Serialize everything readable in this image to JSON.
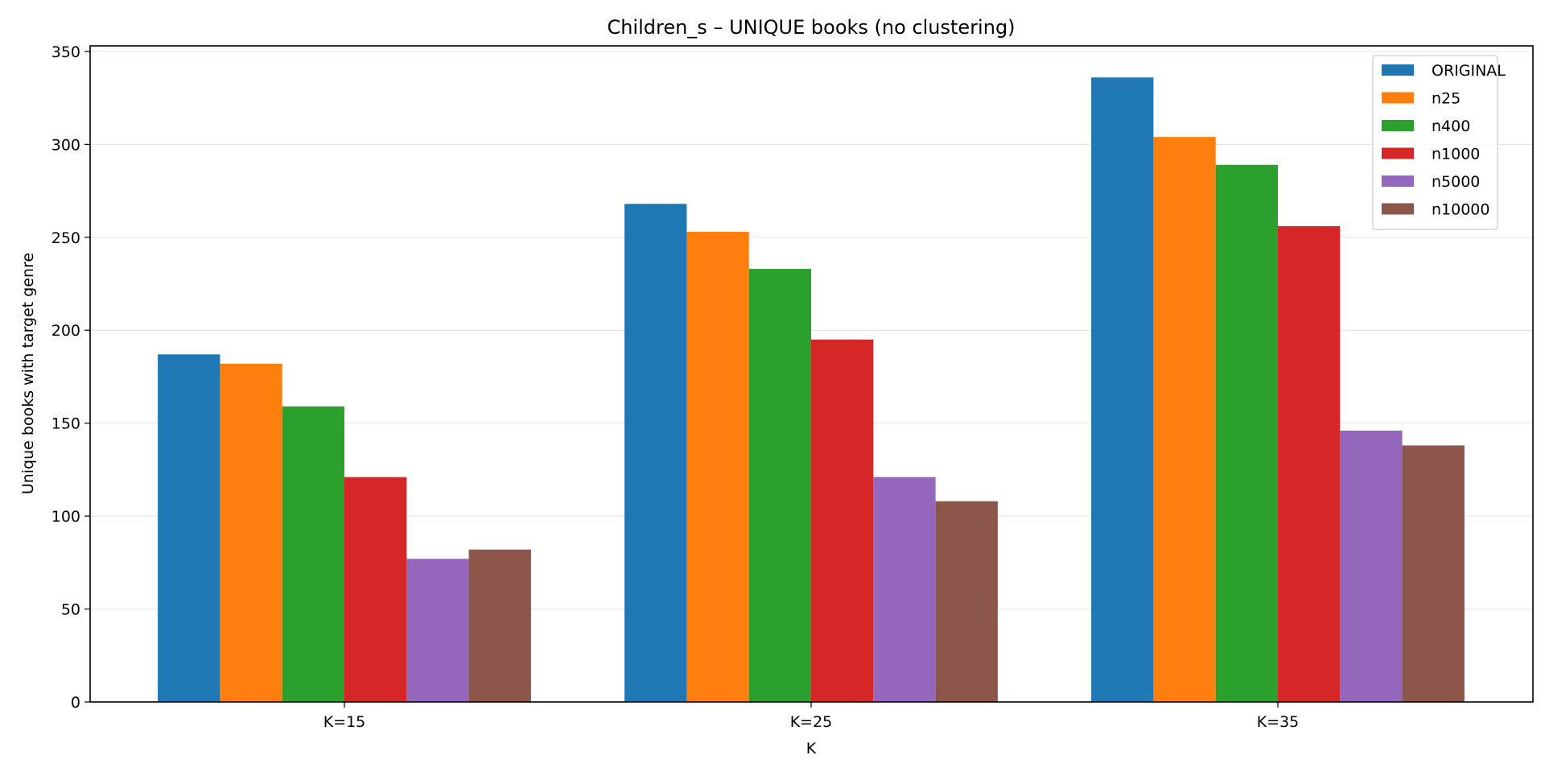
{
  "chart_data": {
    "type": "bar",
    "title": "Children_s – UNIQUE books (no clustering)",
    "xlabel": "K",
    "ylabel": "Unique books with target genre",
    "categories": [
      "K=15",
      "K=25",
      "K=35"
    ],
    "ylim": [
      0,
      353
    ],
    "yticks": [
      0,
      50,
      100,
      150,
      200,
      250,
      300,
      350
    ],
    "grid": "horizontal",
    "legend_position": "top-right",
    "series": [
      {
        "name": "ORIGINAL",
        "color": "#1f77b4",
        "values": [
          187,
          268,
          336
        ]
      },
      {
        "name": "n25",
        "color": "#ff7f0e",
        "values": [
          182,
          253,
          304
        ]
      },
      {
        "name": "n400",
        "color": "#2ca02c",
        "values": [
          159,
          233,
          289
        ]
      },
      {
        "name": "n1000",
        "color": "#d62728",
        "values": [
          121,
          195,
          256
        ]
      },
      {
        "name": "n5000",
        "color": "#9467bd",
        "values": [
          77,
          121,
          146
        ]
      },
      {
        "name": "n10000",
        "color": "#8c564b",
        "values": [
          82,
          108,
          138
        ]
      }
    ]
  }
}
